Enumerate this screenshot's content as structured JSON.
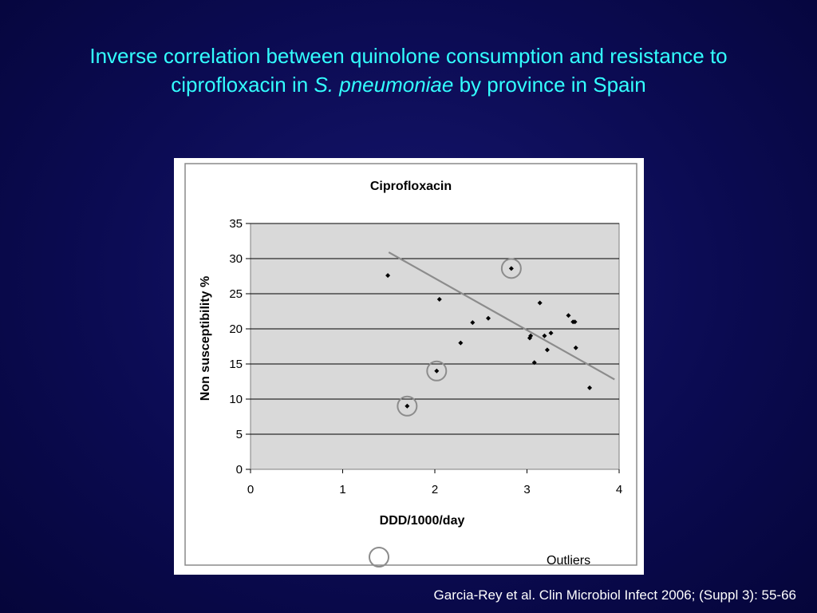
{
  "slide": {
    "title_line1": "Inverse correlation between quinolone consumption and resistance to",
    "title_line2_pre": "ciprofloxacin in ",
    "title_line2_italic": "S. pneumoniae",
    "title_line2_post": " by province in Spain",
    "citation": "Garcia-Rey et al. Clin Microbiol Infect 2006; (Suppl 3): 55-66"
  },
  "colors": {
    "background": "#0b0b52",
    "title": "#33ffff",
    "plot_background": "#d9d9d9",
    "points": "#000000",
    "trend_line": "#8c8c8c",
    "outlier_circle": "#8c8c8c"
  },
  "chart_data": {
    "type": "scatter",
    "title": "Ciprofloxacin",
    "xlabel": "DDD/1000/day",
    "ylabel": "Non susceptibility %",
    "xlim": [
      0,
      4
    ],
    "ylim": [
      0,
      35
    ],
    "xticks": [
      "0",
      "1",
      "2",
      "3",
      "4"
    ],
    "yticks": [
      "0",
      "5",
      "10",
      "15",
      "20",
      "25",
      "30",
      "35"
    ],
    "grid": "horizontal",
    "points": [
      {
        "x": 1.49,
        "y": 27.6
      },
      {
        "x": 1.7,
        "y": 9.0,
        "outlier": true
      },
      {
        "x": 2.02,
        "y": 14.0,
        "outlier": true
      },
      {
        "x": 2.05,
        "y": 24.2
      },
      {
        "x": 2.28,
        "y": 18.0
      },
      {
        "x": 2.41,
        "y": 20.9
      },
      {
        "x": 2.58,
        "y": 21.5
      },
      {
        "x": 2.83,
        "y": 28.6,
        "outlier": true
      },
      {
        "x": 3.03,
        "y": 18.7
      },
      {
        "x": 3.04,
        "y": 19.0
      },
      {
        "x": 3.08,
        "y": 15.2
      },
      {
        "x": 3.14,
        "y": 23.7
      },
      {
        "x": 3.19,
        "y": 19.0
      },
      {
        "x": 3.22,
        "y": 17.0
      },
      {
        "x": 3.26,
        "y": 19.4
      },
      {
        "x": 3.45,
        "y": 21.9
      },
      {
        "x": 3.5,
        "y": 21.0
      },
      {
        "x": 3.52,
        "y": 21.0
      },
      {
        "x": 3.53,
        "y": 17.3
      },
      {
        "x": 3.68,
        "y": 11.6
      }
    ],
    "trend_line": {
      "x": [
        1.5,
        3.95
      ],
      "y": [
        30.9,
        12.8
      ]
    },
    "legend": {
      "label": "Outliers",
      "placement": "bottom-right"
    }
  }
}
